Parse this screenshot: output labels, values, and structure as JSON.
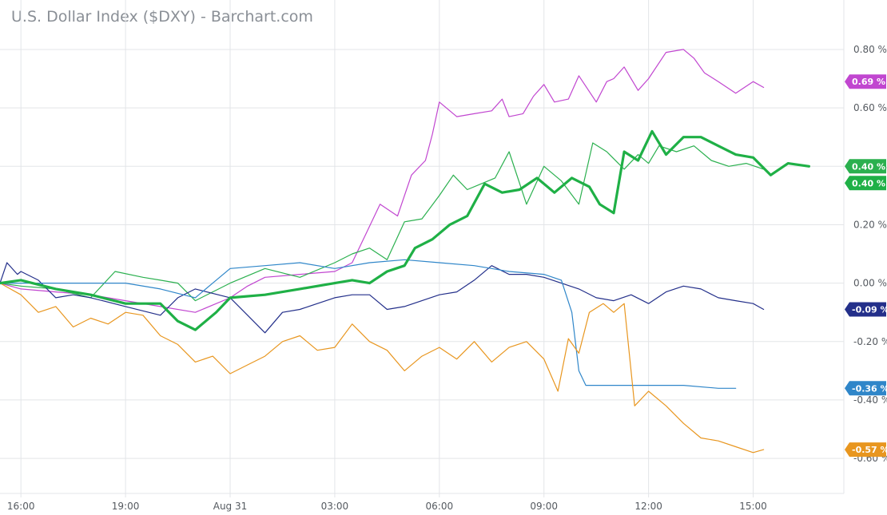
{
  "chart_data": {
    "type": "line",
    "title": "U.S. Dollar Index ($DXY) - Barchart.com",
    "xlabel": "",
    "ylabel": "",
    "x_tick_labels": [
      "16:00",
      "19:00",
      "Aug 31",
      "03:00",
      "06:00",
      "09:00",
      "12:00",
      "15:00"
    ],
    "x_range_hours": [
      -0.6,
      23.6
    ],
    "y_tick_labels": [
      "0.80 %",
      "0.60 %",
      "0.40 %",
      "0.20 %",
      "0.00 %",
      "-0.20 %",
      "-0.40 %",
      "-0.60 %"
    ],
    "y_ticks": [
      0.8,
      0.6,
      0.4,
      0.2,
      0.0,
      -0.2,
      -0.4,
      -0.6
    ],
    "ylim": [
      -0.72,
      0.86
    ],
    "grid": true,
    "legend": "none",
    "series": [
      {
        "color": "#c146d0",
        "bold": false,
        "end_label": "0.69 %",
        "end_value": 0.69,
        "points": [
          [
            -0.6,
            0
          ],
          [
            0,
            -0.02
          ],
          [
            1,
            -0.03
          ],
          [
            2,
            -0.04
          ],
          [
            3,
            -0.06
          ],
          [
            4,
            -0.08
          ],
          [
            5,
            -0.1
          ],
          [
            6,
            -0.05
          ],
          [
            6.5,
            -0.01
          ],
          [
            7,
            0.02
          ],
          [
            8,
            0.03
          ],
          [
            9,
            0.04
          ],
          [
            9.5,
            0.07
          ],
          [
            9.9,
            0.17
          ],
          [
            10.3,
            0.27
          ],
          [
            10.8,
            0.23
          ],
          [
            11.2,
            0.37
          ],
          [
            11.6,
            0.42
          ],
          [
            11.8,
            0.51
          ],
          [
            12,
            0.62
          ],
          [
            12.5,
            0.57
          ],
          [
            13,
            0.58
          ],
          [
            13.5,
            0.59
          ],
          [
            13.8,
            0.63
          ],
          [
            14,
            0.57
          ],
          [
            14.4,
            0.58
          ],
          [
            14.7,
            0.64
          ],
          [
            15,
            0.68
          ],
          [
            15.3,
            0.62
          ],
          [
            15.7,
            0.63
          ],
          [
            16,
            0.71
          ],
          [
            16.5,
            0.62
          ],
          [
            16.8,
            0.69
          ],
          [
            17,
            0.7
          ],
          [
            17.3,
            0.74
          ],
          [
            17.7,
            0.66
          ],
          [
            18,
            0.7
          ],
          [
            18.5,
            0.79
          ],
          [
            19,
            0.8
          ],
          [
            19.3,
            0.77
          ],
          [
            19.6,
            0.72
          ],
          [
            20,
            0.69
          ],
          [
            20.5,
            0.65
          ],
          [
            21,
            0.69
          ],
          [
            21.3,
            0.67
          ]
        ]
      },
      {
        "color": "#2bb04f",
        "bold": false,
        "end_label": "0.40 %",
        "end_value": 0.4,
        "points": [
          [
            -0.6,
            0
          ],
          [
            0,
            -0.01
          ],
          [
            1,
            -0.02
          ],
          [
            2,
            -0.05
          ],
          [
            2.7,
            0.04
          ],
          [
            3.5,
            0.02
          ],
          [
            4,
            0.01
          ],
          [
            4.5,
            0.0
          ],
          [
            5,
            -0.06
          ],
          [
            5.5,
            -0.03
          ],
          [
            6,
            0.0
          ],
          [
            7,
            0.05
          ],
          [
            8,
            0.02
          ],
          [
            9,
            0.07
          ],
          [
            9.5,
            0.1
          ],
          [
            10,
            0.12
          ],
          [
            10.5,
            0.08
          ],
          [
            11,
            0.21
          ],
          [
            11.5,
            0.22
          ],
          [
            12,
            0.3
          ],
          [
            12.4,
            0.37
          ],
          [
            12.8,
            0.32
          ],
          [
            13.2,
            0.34
          ],
          [
            13.6,
            0.36
          ],
          [
            14,
            0.45
          ],
          [
            14.5,
            0.27
          ],
          [
            15,
            0.4
          ],
          [
            15.5,
            0.35
          ],
          [
            16,
            0.27
          ],
          [
            16.4,
            0.48
          ],
          [
            16.8,
            0.45
          ],
          [
            17.3,
            0.39
          ],
          [
            17.7,
            0.44
          ],
          [
            18,
            0.41
          ],
          [
            18.3,
            0.47
          ],
          [
            18.8,
            0.45
          ],
          [
            19.3,
            0.47
          ],
          [
            19.8,
            0.42
          ],
          [
            20.3,
            0.4
          ],
          [
            20.8,
            0.41
          ],
          [
            21.3,
            0.39
          ]
        ]
      },
      {
        "color": "#1fb046",
        "bold": true,
        "end_label": "0.40 %",
        "end_value": 0.4,
        "points": [
          [
            -0.6,
            0
          ],
          [
            0,
            0.01
          ],
          [
            1,
            -0.02
          ],
          [
            2,
            -0.04
          ],
          [
            3,
            -0.07
          ],
          [
            4,
            -0.07
          ],
          [
            4.5,
            -0.13
          ],
          [
            5,
            -0.16
          ],
          [
            5.6,
            -0.1
          ],
          [
            6,
            -0.05
          ],
          [
            7,
            -0.04
          ],
          [
            8,
            -0.02
          ],
          [
            9,
            0.0
          ],
          [
            9.5,
            0.01
          ],
          [
            10,
            0.0
          ],
          [
            10.5,
            0.04
          ],
          [
            11,
            0.06
          ],
          [
            11.3,
            0.12
          ],
          [
            11.8,
            0.15
          ],
          [
            12.3,
            0.2
          ],
          [
            12.8,
            0.23
          ],
          [
            13.3,
            0.34
          ],
          [
            13.8,
            0.31
          ],
          [
            14.3,
            0.32
          ],
          [
            14.8,
            0.36
          ],
          [
            15.3,
            0.31
          ],
          [
            15.8,
            0.36
          ],
          [
            16.3,
            0.33
          ],
          [
            16.6,
            0.27
          ],
          [
            17,
            0.24
          ],
          [
            17.3,
            0.45
          ],
          [
            17.7,
            0.42
          ],
          [
            18.1,
            0.52
          ],
          [
            18.5,
            0.44
          ],
          [
            19,
            0.5
          ],
          [
            19.5,
            0.5
          ],
          [
            20,
            0.47
          ],
          [
            20.5,
            0.44
          ],
          [
            21,
            0.43
          ],
          [
            21.5,
            0.37
          ],
          [
            22,
            0.41
          ],
          [
            22.6,
            0.4
          ]
        ]
      },
      {
        "color": "#232f8a",
        "bold": false,
        "end_label": "-0.09 %",
        "end_value": -0.09,
        "points": [
          [
            -0.6,
            0
          ],
          [
            -0.4,
            0.07
          ],
          [
            -0.1,
            0.03
          ],
          [
            0,
            0.04
          ],
          [
            0.5,
            0.01
          ],
          [
            1,
            -0.05
          ],
          [
            1.5,
            -0.04
          ],
          [
            2,
            -0.05
          ],
          [
            3,
            -0.08
          ],
          [
            4,
            -0.11
          ],
          [
            4.5,
            -0.05
          ],
          [
            5,
            -0.02
          ],
          [
            6,
            -0.05
          ],
          [
            6.5,
            -0.11
          ],
          [
            7,
            -0.17
          ],
          [
            7.5,
            -0.1
          ],
          [
            8,
            -0.09
          ],
          [
            9,
            -0.05
          ],
          [
            9.5,
            -0.04
          ],
          [
            10,
            -0.04
          ],
          [
            10.5,
            -0.09
          ],
          [
            11,
            -0.08
          ],
          [
            11.5,
            -0.06
          ],
          [
            12,
            -0.04
          ],
          [
            12.5,
            -0.03
          ],
          [
            13,
            0.01
          ],
          [
            13.5,
            0.06
          ],
          [
            14,
            0.03
          ],
          [
            14.5,
            0.03
          ],
          [
            15,
            0.02
          ],
          [
            16,
            -0.02
          ],
          [
            16.5,
            -0.05
          ],
          [
            17,
            -0.06
          ],
          [
            17.5,
            -0.04
          ],
          [
            18,
            -0.07
          ],
          [
            18.5,
            -0.03
          ],
          [
            19,
            -0.01
          ],
          [
            19.5,
            -0.02
          ],
          [
            20,
            -0.05
          ],
          [
            20.5,
            -0.06
          ],
          [
            21,
            -0.07
          ],
          [
            21.3,
            -0.09
          ]
        ]
      },
      {
        "color": "#2f86c9",
        "bold": false,
        "end_label": "-0.36 %",
        "end_value": -0.36,
        "points": [
          [
            -0.6,
            0
          ],
          [
            1,
            0.0
          ],
          [
            2,
            0.0
          ],
          [
            3,
            0.0
          ],
          [
            4,
            -0.02
          ],
          [
            5,
            -0.05
          ],
          [
            5.5,
            0.0
          ],
          [
            6,
            0.05
          ],
          [
            7,
            0.06
          ],
          [
            8,
            0.07
          ],
          [
            9,
            0.05
          ],
          [
            10,
            0.07
          ],
          [
            11,
            0.08
          ],
          [
            12,
            0.07
          ],
          [
            13,
            0.06
          ],
          [
            14,
            0.04
          ],
          [
            15,
            0.03
          ],
          [
            15.5,
            0.01
          ],
          [
            15.8,
            -0.1
          ],
          [
            16,
            -0.3
          ],
          [
            16.2,
            -0.35
          ],
          [
            17,
            -0.35
          ],
          [
            18,
            -0.35
          ],
          [
            19,
            -0.35
          ],
          [
            20,
            -0.36
          ],
          [
            20.5,
            -0.36
          ]
        ]
      },
      {
        "color": "#e8961f",
        "bold": false,
        "end_label": "-0.57 %",
        "end_value": -0.57,
        "points": [
          [
            -0.6,
            0
          ],
          [
            0,
            -0.04
          ],
          [
            0.5,
            -0.1
          ],
          [
            1,
            -0.08
          ],
          [
            1.5,
            -0.15
          ],
          [
            2,
            -0.12
          ],
          [
            2.5,
            -0.14
          ],
          [
            3,
            -0.1
          ],
          [
            3.5,
            -0.11
          ],
          [
            4,
            -0.18
          ],
          [
            4.5,
            -0.21
          ],
          [
            5,
            -0.27
          ],
          [
            5.5,
            -0.25
          ],
          [
            6,
            -0.31
          ],
          [
            6.5,
            -0.28
          ],
          [
            7,
            -0.25
          ],
          [
            7.5,
            -0.2
          ],
          [
            8,
            -0.18
          ],
          [
            8.5,
            -0.23
          ],
          [
            9,
            -0.22
          ],
          [
            9.5,
            -0.14
          ],
          [
            10,
            -0.2
          ],
          [
            10.5,
            -0.23
          ],
          [
            11,
            -0.3
          ],
          [
            11.5,
            -0.25
          ],
          [
            12,
            -0.22
          ],
          [
            12.5,
            -0.26
          ],
          [
            13,
            -0.2
          ],
          [
            13.5,
            -0.27
          ],
          [
            14,
            -0.22
          ],
          [
            14.5,
            -0.2
          ],
          [
            15,
            -0.26
          ],
          [
            15.4,
            -0.37
          ],
          [
            15.7,
            -0.19
          ],
          [
            16,
            -0.24
          ],
          [
            16.3,
            -0.1
          ],
          [
            16.7,
            -0.07
          ],
          [
            17,
            -0.1
          ],
          [
            17.3,
            -0.07
          ],
          [
            17.6,
            -0.42
          ],
          [
            18,
            -0.37
          ],
          [
            18.5,
            -0.42
          ],
          [
            19,
            -0.48
          ],
          [
            19.5,
            -0.53
          ],
          [
            20,
            -0.54
          ],
          [
            20.5,
            -0.56
          ],
          [
            21,
            -0.58
          ],
          [
            21.3,
            -0.57
          ]
        ]
      }
    ]
  }
}
